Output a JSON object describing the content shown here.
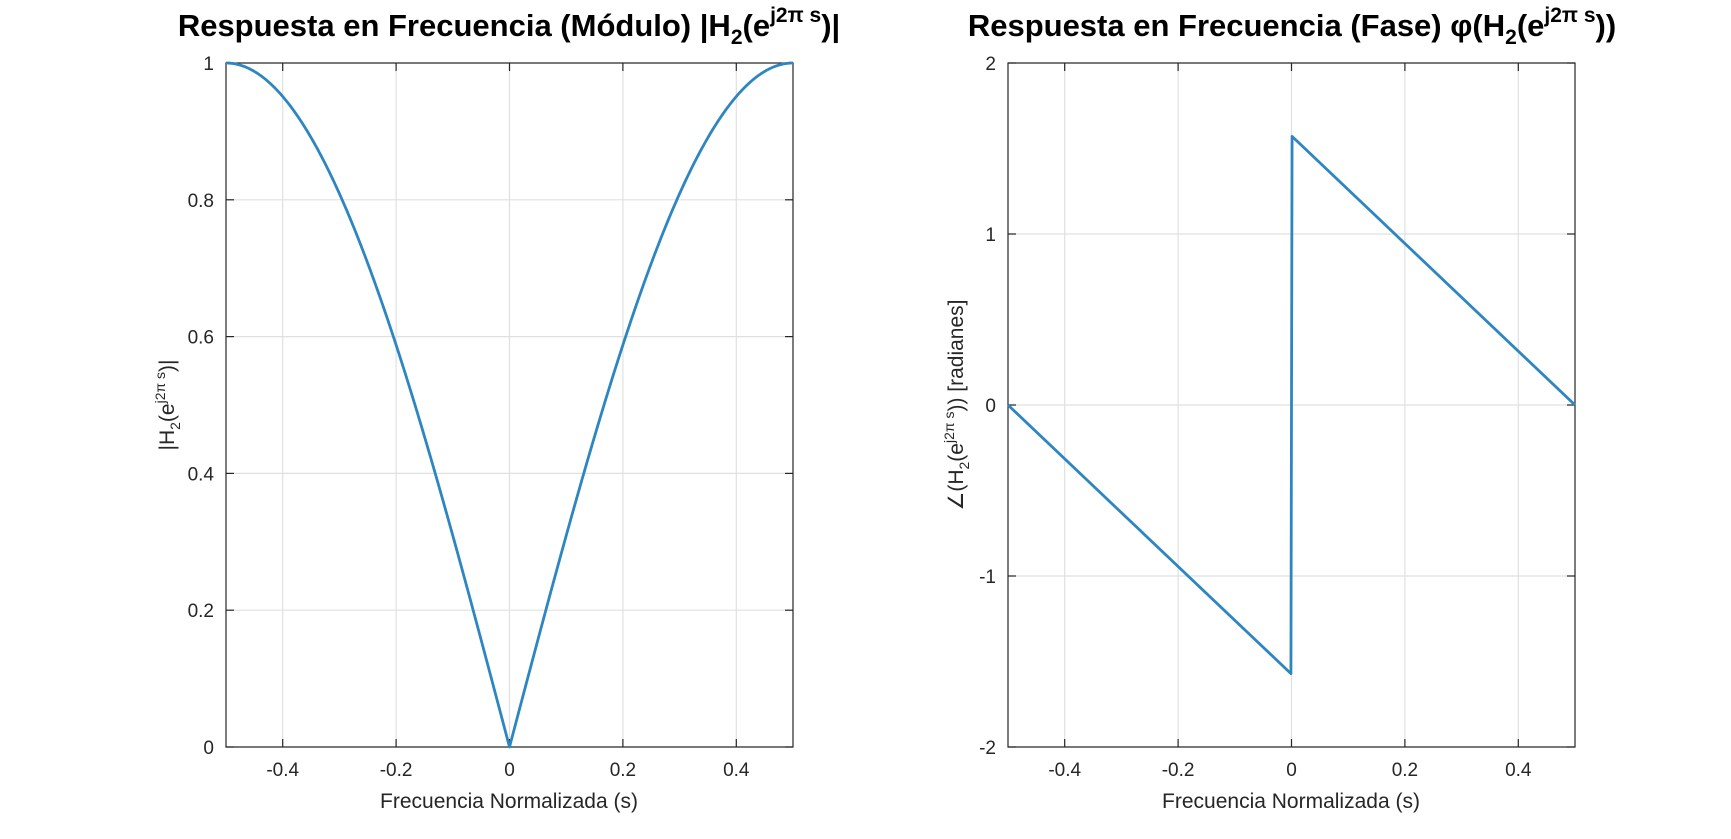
{
  "chart_data": [
    {
      "type": "line",
      "title": {
        "text": "Respuesta en Frecuencia (Módulo) |H",
        "sub": "2",
        "mid": "(e",
        "sup": "j2π s",
        "end": ")|"
      },
      "xlabel": "Frecuencia Normalizada (s)",
      "ylabel": {
        "pre": "|H",
        "sub": "2",
        "mid": "(e",
        "sup": "j2π s",
        "end": ")|"
      },
      "xlim": [
        -0.5,
        0.5
      ],
      "ylim": [
        0,
        1
      ],
      "xticks": [
        -0.4,
        -0.2,
        0,
        0.2,
        0.4
      ],
      "xtick_labels": [
        "-0.4",
        "-0.2",
        "0",
        "0.2",
        "0.4"
      ],
      "yticks": [
        0,
        0.2,
        0.4,
        0.6,
        0.8,
        1
      ],
      "ytick_labels": [
        "0",
        "0.2",
        "0.4",
        "0.6",
        "0.8",
        "1"
      ],
      "grid": true,
      "color": "#2e86c1",
      "function": "abs(sin(pi*s))",
      "series": [
        {
          "x": [
            -0.5,
            -0.45,
            -0.4,
            -0.35,
            -0.3,
            -0.25,
            -0.2,
            -0.15,
            -0.1,
            -0.05,
            0,
            0.05,
            0.1,
            0.15,
            0.2,
            0.25,
            0.3,
            0.35,
            0.4,
            0.45,
            0.5
          ],
          "y": [
            1,
            0.988,
            0.951,
            0.891,
            0.809,
            0.707,
            0.588,
            0.454,
            0.309,
            0.156,
            0,
            0.156,
            0.309,
            0.454,
            0.588,
            0.707,
            0.809,
            0.891,
            0.951,
            0.988,
            1
          ]
        }
      ]
    },
    {
      "type": "line",
      "title": {
        "text": "Respuesta en Frecuencia (Fase) φ(H",
        "sub": "2",
        "mid": "(e",
        "sup": "j2π s",
        "end": "))"
      },
      "xlabel": "Frecuencia Normalizada (s)",
      "ylabel": {
        "pre": "∠(H",
        "sub": "2",
        "mid": "(e",
        "sup": "j2π s",
        "end": ")) [radianes]"
      },
      "xlim": [
        -0.5,
        0.5
      ],
      "ylim": [
        -2,
        2
      ],
      "xticks": [
        -0.4,
        -0.2,
        0,
        0.2,
        0.4
      ],
      "xtick_labels": [
        "-0.4",
        "-0.2",
        "0",
        "0.2",
        "0.4"
      ],
      "yticks": [
        -2,
        -1,
        0,
        1,
        2
      ],
      "ytick_labels": [
        "-2",
        "-1",
        "0",
        "1",
        "2"
      ],
      "grid": true,
      "color": "#2e86c1",
      "series": [
        {
          "x": [
            -0.5,
            -0.001,
            0.001,
            0.5
          ],
          "y": [
            0,
            -1.5708,
            1.5708,
            0
          ]
        }
      ]
    }
  ]
}
